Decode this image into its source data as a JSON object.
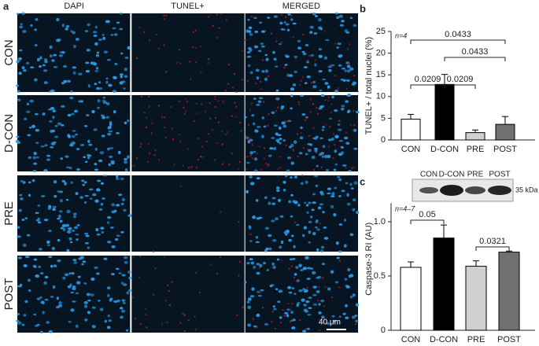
{
  "figure": {
    "panel_labels": [
      "a",
      "b",
      "c"
    ],
    "columns": [
      "DAPI",
      "TUNEL+",
      "MERGED"
    ],
    "rows": [
      "CON",
      "D-CON",
      "PRE",
      "POST"
    ],
    "scale_bar": "40 μm"
  },
  "chart_data": [
    {
      "type": "bar",
      "note": "n=4",
      "ylabel": "TUNEL+ / total nuclei (%)",
      "categories": [
        "CON",
        "D-CON",
        "PRE",
        "POST"
      ],
      "values": [
        4.8,
        12.8,
        1.7,
        3.6
      ],
      "errors": [
        1.1,
        2.3,
        0.6,
        1.8
      ],
      "colors": [
        "#ffffff",
        "#000000",
        "#d0d0d0",
        "#707070"
      ],
      "ylim": [
        0,
        25
      ],
      "yticks": [
        0,
        5,
        10,
        15,
        20,
        25
      ],
      "brackets": [
        {
          "from": "CON",
          "to": "POST",
          "label": "0.0433"
        },
        {
          "from": "D-CON",
          "to": "POST",
          "label": "0.0433"
        },
        {
          "from": "CON",
          "to": "D-CON",
          "label": "0.0209"
        },
        {
          "from": "D-CON",
          "to": "PRE",
          "label": "0.0209"
        }
      ]
    },
    {
      "type": "bar",
      "note": "n=4–7",
      "ylabel": "Caspase-3 RI (AU)",
      "blot_labels": [
        "CON",
        "D-CON",
        "PRE",
        "POST"
      ],
      "blot_marker": "35 kDa",
      "categories": [
        "CON",
        "D-CON",
        "PRE",
        "POST"
      ],
      "values": [
        0.58,
        0.85,
        0.59,
        0.72
      ],
      "errors": [
        0.05,
        0.12,
        0.05,
        0.01
      ],
      "colors": [
        "#ffffff",
        "#000000",
        "#d0d0d0",
        "#707070"
      ],
      "ylim": [
        0,
        1.17
      ],
      "yticks": [
        0,
        0.5,
        {
          "value": 1,
          "label": "1.0"
        }
      ],
      "brackets": [
        {
          "from": "CON",
          "to": "D-CON",
          "label": "0.05"
        },
        {
          "from": "PRE",
          "to": "POST",
          "label": "0.0321"
        }
      ]
    }
  ]
}
